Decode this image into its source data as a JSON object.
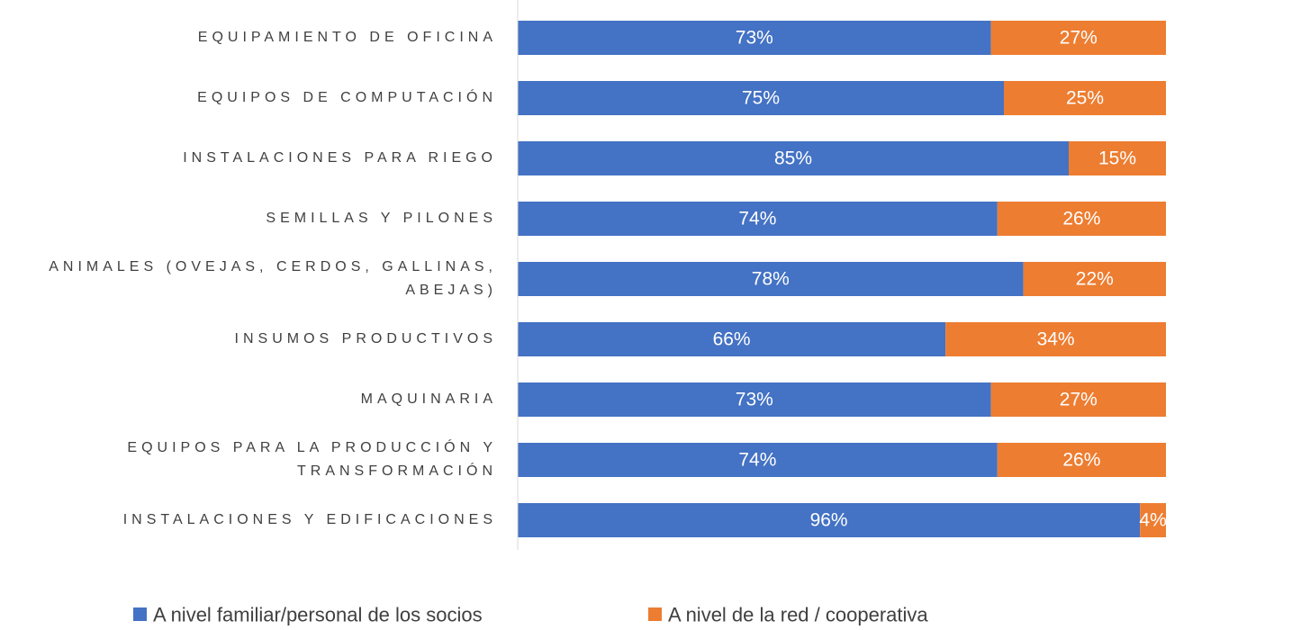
{
  "chart_data": {
    "type": "stacked_barh",
    "categories": [
      "EQUIPAMIENTO DE OFICINA",
      "EQUIPOS DE COMPUTACIÓN",
      "INSTALACIONES PARA RIEGO",
      "SEMILLAS Y PILONES",
      "ANIMALES (OVEJAS, CERDOS, GALLINAS, ABEJAS)",
      "INSUMOS PRODUCTIVOS",
      "MAQUINARIA",
      "EQUIPOS PARA LA PRODUCCIÓN Y TRANSFORMACIÓN",
      "INSTALACIONES Y EDIFICACIONES"
    ],
    "series": [
      {
        "name": "A nivel familiar/personal de los socios",
        "color": "#4472c4",
        "values": [
          73,
          75,
          85,
          74,
          78,
          66,
          73,
          74,
          96
        ],
        "value_labels": [
          "73%",
          "75%",
          "85%",
          "74%",
          "78%",
          "66%",
          "73%",
          "74%",
          "96%"
        ]
      },
      {
        "name": "A nivel de la red / cooperativa",
        "color": "#ed7d31",
        "values": [
          27,
          25,
          15,
          26,
          22,
          34,
          27,
          26,
          4
        ],
        "value_labels": [
          "27%",
          "25%",
          "15%",
          "26%",
          "22%",
          "34%",
          "27%",
          "26%",
          "4%"
        ]
      }
    ],
    "xlim": [
      0,
      100
    ],
    "legend": "bottom"
  }
}
